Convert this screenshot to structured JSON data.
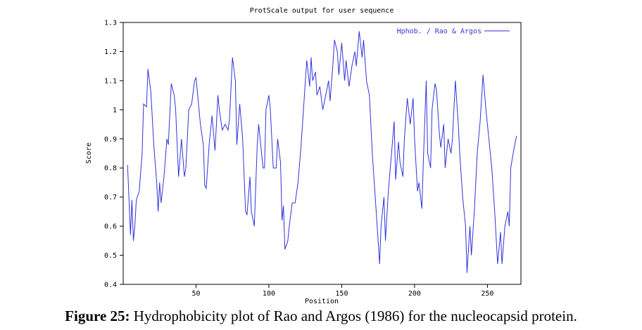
{
  "chart_data": {
    "type": "line",
    "title": "ProtScale output for user sequence",
    "x_label": "Position",
    "y_label": "Score",
    "xlim": [
      0,
      273
    ],
    "xticks": [
      50,
      100,
      150,
      200,
      250
    ],
    "ylim": [
      0.4,
      1.3
    ],
    "yticks": [
      0.4,
      0.5,
      0.6,
      0.7,
      0.8,
      0.9,
      1,
      1.1,
      1.2,
      1.3
    ],
    "legend_position": "top-right",
    "grid": false,
    "series": [
      {
        "name": "Hphob. / Rao & Argos",
        "color": "#3333dd",
        "x": [
          3,
          5,
          6,
          7,
          8,
          9,
          11,
          13,
          14,
          16,
          17,
          19,
          21,
          23,
          24,
          25,
          26,
          28,
          30,
          31,
          33,
          35,
          36,
          38,
          40,
          42,
          43,
          45,
          47,
          49,
          50,
          53,
          55,
          56,
          57,
          59,
          61,
          63,
          64,
          65,
          66,
          68,
          70,
          72,
          73,
          75,
          77,
          78,
          80,
          82,
          84,
          85,
          87,
          88,
          90,
          92,
          93,
          96,
          97,
          98,
          100,
          101,
          103,
          105,
          106,
          108,
          109,
          110,
          111,
          113,
          114,
          116,
          118,
          120,
          122,
          124,
          126,
          128,
          129,
          130,
          132,
          133,
          135,
          137,
          139,
          141,
          142,
          144,
          145,
          147,
          148,
          150,
          152,
          153,
          155,
          157,
          159,
          160,
          162,
          164,
          165,
          167,
          169,
          171,
          173,
          175,
          176,
          177,
          179,
          180,
          182,
          184,
          186,
          187,
          189,
          190,
          192,
          193,
          195,
          197,
          199,
          200,
          202,
          203,
          205,
          206,
          208,
          209,
          211,
          212,
          214,
          215,
          217,
          218,
          220,
          221,
          223,
          225,
          226,
          228,
          230,
          231,
          233,
          235,
          236,
          238,
          239,
          241,
          243,
          245,
          247,
          249,
          251,
          253,
          255,
          257,
          259,
          260,
          262,
          264,
          265,
          266,
          268,
          270
        ],
        "values": [
          0.81,
          0.57,
          0.69,
          0.55,
          0.6,
          0.69,
          0.72,
          0.85,
          1.02,
          1.01,
          1.14,
          1.06,
          0.88,
          0.75,
          0.65,
          0.75,
          0.68,
          0.77,
          0.9,
          0.88,
          1.09,
          1.05,
          1.0,
          0.77,
          0.9,
          0.77,
          0.8,
          1.0,
          1.02,
          1.1,
          1.11,
          0.95,
          0.88,
          0.74,
          0.73,
          0.88,
          0.98,
          0.86,
          0.95,
          1.05,
          1.0,
          0.93,
          0.95,
          0.93,
          0.97,
          1.18,
          1.1,
          0.88,
          1.02,
          0.9,
          0.65,
          0.64,
          0.77,
          0.65,
          0.6,
          0.88,
          0.95,
          0.8,
          0.8,
          1.0,
          1.05,
          1.0,
          0.8,
          0.8,
          0.9,
          0.82,
          0.62,
          0.67,
          0.52,
          0.55,
          0.6,
          0.68,
          0.68,
          0.75,
          0.87,
          1.02,
          1.17,
          1.08,
          1.18,
          1.1,
          1.13,
          1.05,
          1.08,
          1.0,
          1.05,
          1.1,
          1.03,
          1.16,
          1.24,
          1.2,
          1.12,
          1.23,
          1.1,
          1.17,
          1.08,
          1.15,
          1.2,
          1.15,
          1.27,
          1.18,
          1.24,
          1.1,
          1.05,
          0.85,
          0.7,
          0.55,
          0.47,
          0.6,
          0.7,
          0.55,
          0.72,
          0.84,
          0.96,
          0.76,
          0.89,
          0.82,
          0.77,
          0.9,
          1.04,
          0.95,
          1.04,
          0.9,
          0.72,
          0.75,
          0.66,
          0.82,
          1.1,
          0.85,
          0.8,
          1.0,
          1.09,
          1.07,
          0.92,
          0.87,
          0.95,
          0.8,
          0.9,
          0.85,
          0.9,
          1.1,
          0.95,
          0.85,
          0.7,
          0.6,
          0.44,
          0.6,
          0.5,
          0.65,
          0.85,
          0.96,
          1.12,
          1.0,
          0.9,
          0.8,
          0.65,
          0.47,
          0.58,
          0.47,
          0.6,
          0.65,
          0.6,
          0.8,
          0.86,
          0.91
        ]
      }
    ]
  },
  "caption_label": "Figure 25:",
  "caption_text": "Hydrophobicity plot of Rao and Argos (1986) for the nucleocapsid protein."
}
